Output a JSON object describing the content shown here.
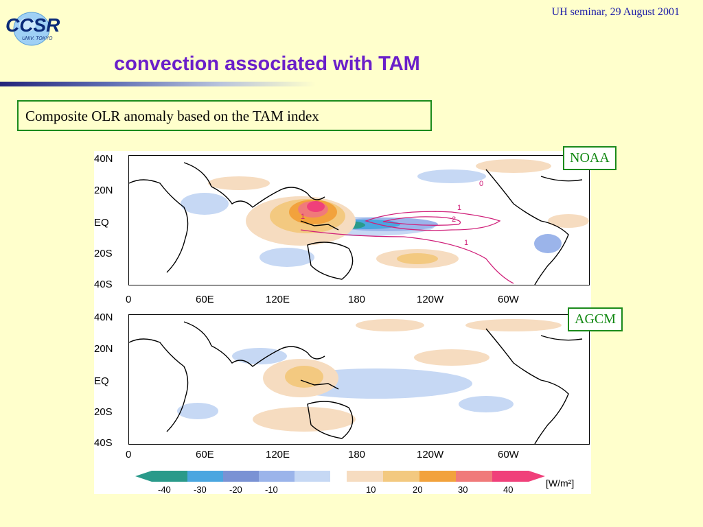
{
  "header": {
    "logo_text": "CCSR",
    "logo_sub": "UNIV. TOKYO",
    "note": "UH seminar, 29 August 2001"
  },
  "slide": {
    "title": "convection associated with TAM",
    "caption": "Composite OLR anomaly based on the TAM index"
  },
  "panels": [
    {
      "label": "NOAA"
    },
    {
      "label": "AGCM"
    }
  ],
  "axes": {
    "lat_labels": [
      "40N",
      "20N",
      "EQ",
      "20S",
      "40S"
    ],
    "lon_labels": [
      "0",
      "60E",
      "120E",
      "180",
      "120W",
      "60W"
    ]
  },
  "colorbar": {
    "ticks": [
      "-40",
      "-30",
      "-20",
      "-10",
      "10",
      "20",
      "30",
      "40"
    ],
    "unit": "[W/m²]",
    "neg_colors": [
      "#2a9a8a",
      "#4aa6e0",
      "#7a92d4",
      "#9bb4ea",
      "#c6d8f4"
    ],
    "pos_colors": [
      "#f6dcc0",
      "#f3c980",
      "#f2a23c",
      "#f07a7a",
      "#f0407a"
    ]
  },
  "contour_labels": [
    "1",
    "2",
    "1",
    "1",
    "0"
  ]
}
